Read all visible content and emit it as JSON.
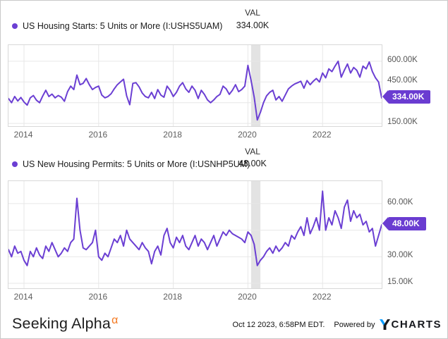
{
  "val_header": "VAL",
  "colors": {
    "line": "#6B3FD3",
    "badge_bg": "#6A3CD1",
    "badge_text": "#FFFFFF",
    "recession_band": "#E3E3E3",
    "gridline": "#E7E7E7",
    "plot_border": "#D8D8D8",
    "axis_text": "#5F5F5F",
    "legend_text": "#1B1B1B",
    "sa_orange": "#F47920",
    "ycharts_blue": "#0D9DFF",
    "ycharts_dark": "#16181D"
  },
  "footer": {
    "brand": "Seeking Alpha",
    "alpha_symbol": "α",
    "timestamp": "Oct 12 2023, 6:58PM EDT.",
    "powered_by": "Powered by",
    "ycharts_charts_text": "CHARTS"
  },
  "chart_data": [
    {
      "type": "line",
      "title": "US Housing Starts: 5 Units or More (I:USHS5UAM)",
      "latest_label": "334.00K",
      "latest_value": 334,
      "unit": "thousands of units (K)",
      "frequency": "monthly",
      "start_month": "2013-08",
      "end_month": "2023-08",
      "x_tick_labels": [
        "2014",
        "2016",
        "2018",
        "2020",
        "2022"
      ],
      "visible_y_ticks": [
        {
          "value": 600,
          "label": "600.00K"
        },
        {
          "value": 450,
          "label": "450.00K"
        },
        {
          "value": 150,
          "label": "150.00K"
        }
      ],
      "y_gridlines": [
        150,
        300,
        450,
        600
      ],
      "ylim": [
        130,
        717
      ],
      "grid": true,
      "legend_position": "top-left",
      "recession_band": {
        "start": "2020-02",
        "end": "2020-04"
      },
      "values": [
        330,
        300,
        345,
        312,
        338,
        305,
        282,
        335,
        352,
        318,
        300,
        348,
        390,
        345,
        362,
        335,
        352,
        340,
        310,
        380,
        420,
        395,
        500,
        430,
        440,
        475,
        430,
        395,
        410,
        420,
        355,
        335,
        345,
        365,
        400,
        430,
        450,
        470,
        350,
        285,
        440,
        445,
        415,
        370,
        345,
        335,
        375,
        330,
        395,
        355,
        340,
        420,
        390,
        345,
        375,
        420,
        445,
        400,
        375,
        420,
        390,
        330,
        390,
        360,
        320,
        300,
        320,
        345,
        360,
        420,
        400,
        360,
        390,
        430,
        380,
        395,
        420,
        570,
        460,
        340,
        175,
        230,
        300,
        350,
        375,
        390,
        320,
        345,
        310,
        355,
        400,
        420,
        435,
        445,
        455,
        405,
        460,
        430,
        455,
        475,
        450,
        515,
        480,
        545,
        525,
        565,
        600,
        485,
        535,
        580,
        515,
        555,
        535,
        485,
        565,
        545,
        595,
        525,
        480,
        450,
        334
      ]
    },
    {
      "type": "line",
      "title": "US New Housing Permits: 5 Units or More (I:USNHP5UM)",
      "latest_label": "48.00K",
      "latest_value": 48,
      "unit": "thousands of units (K)",
      "frequency": "monthly",
      "start_month": "2013-08",
      "end_month": "2023-08",
      "x_tick_labels": [
        "2014",
        "2016",
        "2018",
        "2020",
        "2022"
      ],
      "visible_y_ticks": [
        {
          "value": 60,
          "label": "60.00K"
        },
        {
          "value": 30,
          "label": "30.00K"
        },
        {
          "value": 15,
          "label": "15.00K"
        }
      ],
      "y_gridlines": [
        15,
        30,
        45,
        60
      ],
      "ylim": [
        12.2,
        72.7
      ],
      "grid": true,
      "legend_position": "top-left",
      "recession_band": {
        "start": "2020-02",
        "end": "2020-04"
      },
      "values": [
        34,
        30,
        36,
        32,
        33,
        28,
        25,
        33,
        30,
        35,
        31,
        29,
        36,
        33,
        38,
        34,
        30,
        32,
        35,
        33,
        38,
        40,
        63,
        45,
        35,
        34,
        36,
        38,
        45,
        30,
        28,
        32,
        30,
        35,
        40,
        38,
        42,
        36,
        45,
        40,
        38,
        36,
        34,
        38,
        35,
        33,
        26,
        33,
        36,
        31,
        42,
        46,
        38,
        35,
        41,
        38,
        42,
        36,
        34,
        38,
        42,
        36,
        40,
        38,
        34,
        38,
        42,
        36,
        40,
        44,
        42,
        45,
        43,
        42,
        41,
        40,
        38,
        44,
        42,
        37,
        25,
        28,
        30,
        33,
        35,
        32,
        36,
        33,
        35,
        38,
        36,
        42,
        40,
        44,
        47,
        42,
        52,
        43,
        47,
        52,
        45,
        67,
        45,
        52,
        48,
        56,
        52,
        46,
        58,
        62,
        50,
        56,
        52,
        54,
        48,
        50,
        44,
        46,
        36,
        42,
        48
      ]
    }
  ]
}
